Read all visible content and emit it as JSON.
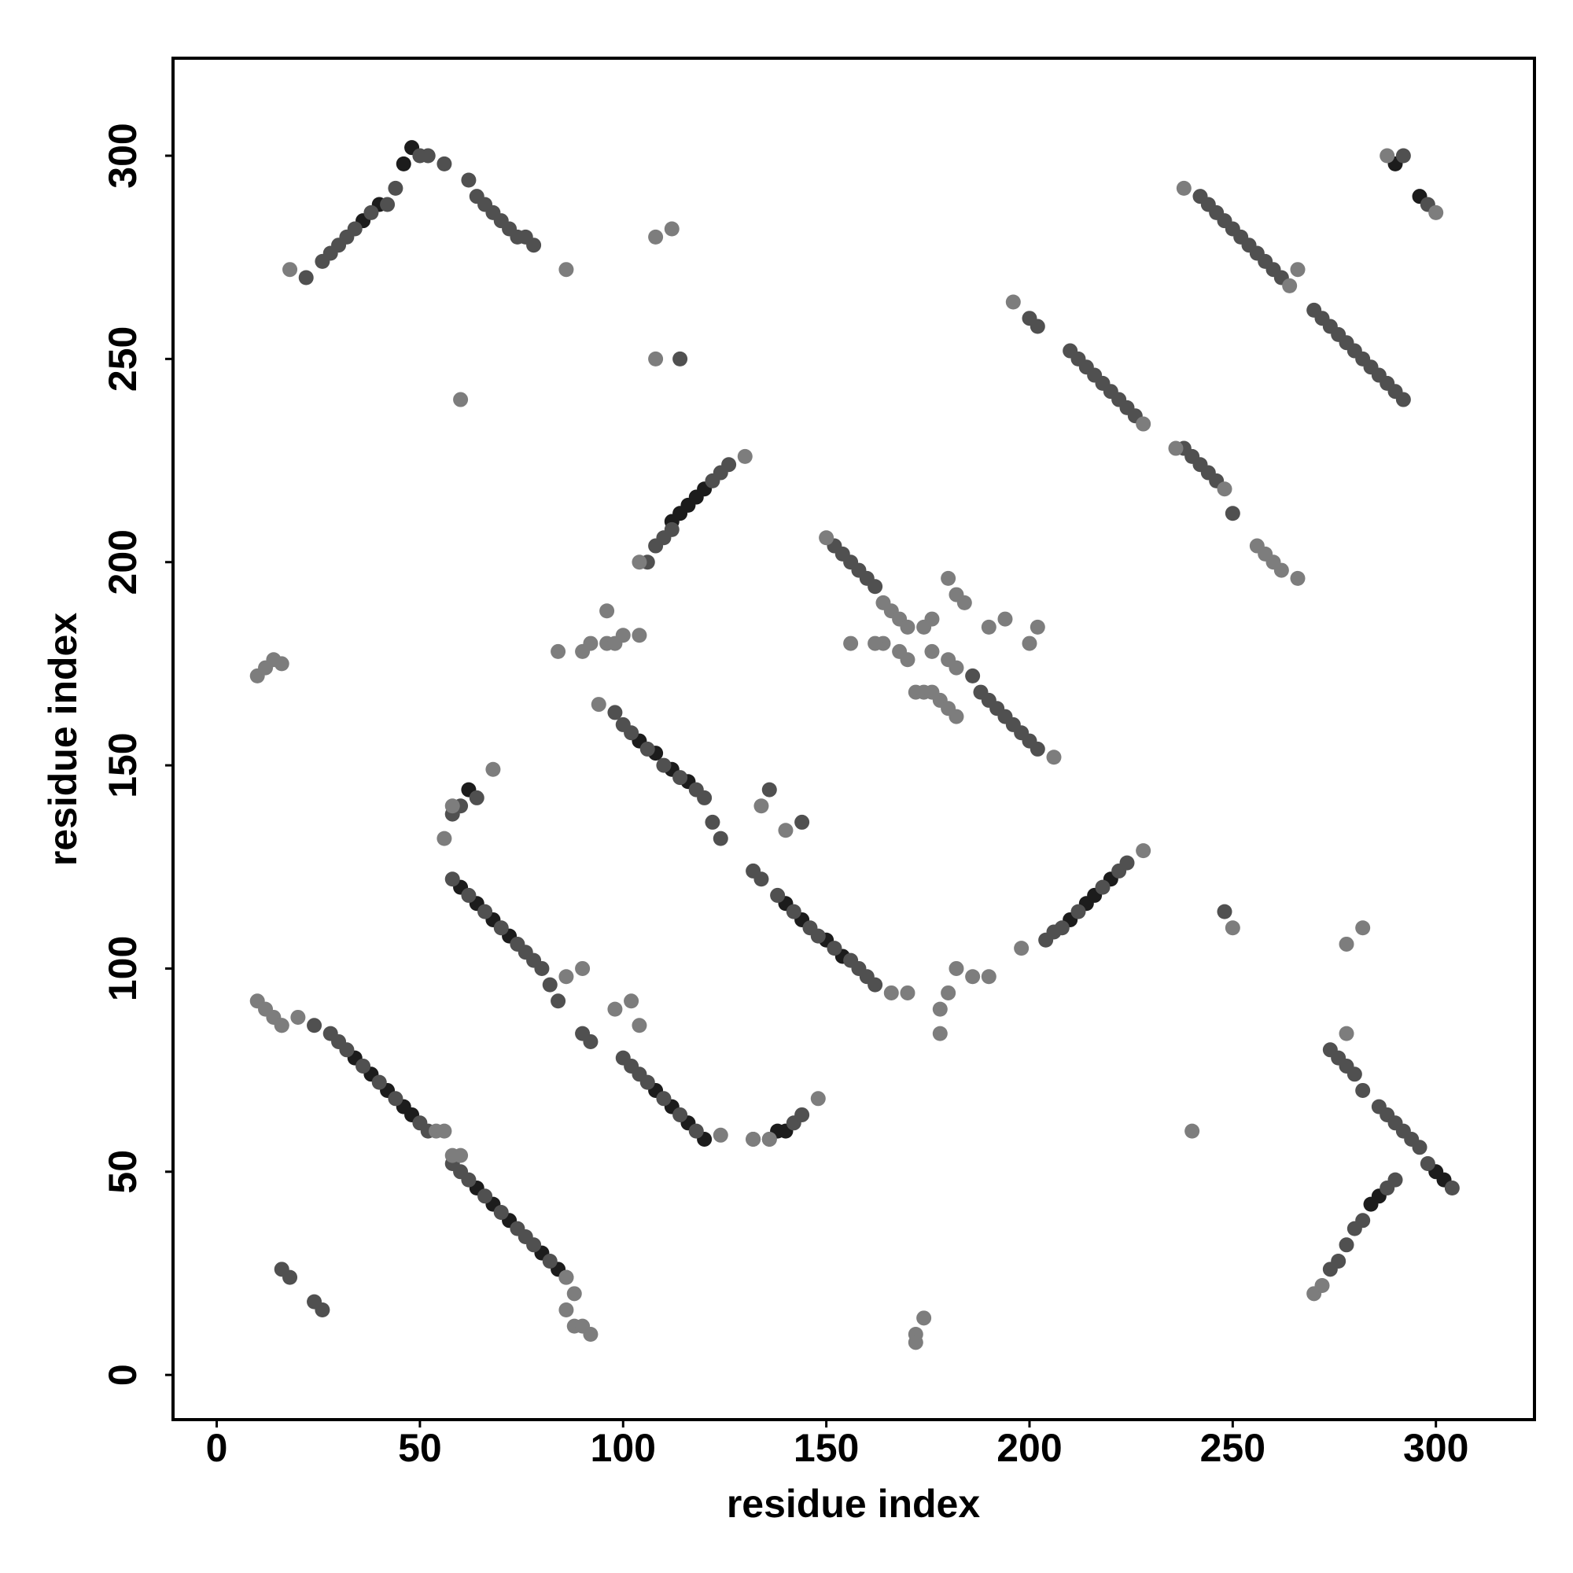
{
  "chart_data": {
    "type": "scatter",
    "x_label": "residue index",
    "y_label": "residue index",
    "xlim": [
      -10.75,
      324.25
    ],
    "ylim": [
      -11,
      324
    ],
    "xticks": [
      0,
      50,
      100,
      150,
      200,
      250,
      300
    ],
    "yticks": [
      0,
      50,
      100,
      150,
      200,
      250,
      300
    ],
    "grid": false,
    "series": [
      {
        "color": "#1c1c1c",
        "x": [
          34,
          38,
          42,
          46,
          48,
          64,
          68,
          72,
          80,
          84,
          60,
          64,
          68,
          72,
          108,
          112,
          116,
          120,
          138,
          140,
          104,
          108,
          112,
          116,
          140,
          144,
          150,
          154,
          62,
          112,
          114,
          116,
          118,
          120,
          210,
          214,
          216,
          220,
          46,
          48,
          36,
          40,
          290,
          296,
          300,
          302,
          284,
          286
        ],
        "values": [
          78,
          74,
          70,
          66,
          64,
          46,
          42,
          38,
          30,
          26,
          120,
          116,
          112,
          108,
          70,
          66,
          62,
          58,
          60,
          60,
          156,
          153,
          149,
          146,
          116,
          112,
          107,
          103,
          144,
          210,
          212,
          214,
          216,
          218,
          112,
          116,
          118,
          122,
          298,
          302,
          284,
          288,
          298,
          290,
          50,
          48,
          42,
          44
        ]
      },
      {
        "color": "#505050",
        "x": [
          24,
          28,
          30,
          32,
          36,
          40,
          44,
          50,
          52,
          58,
          60,
          62,
          66,
          70,
          74,
          76,
          78,
          82,
          86,
          58,
          62,
          66,
          70,
          74,
          76,
          78,
          80,
          82,
          84,
          90,
          92,
          100,
          102,
          104,
          106,
          110,
          114,
          118,
          132,
          136,
          142,
          144,
          98,
          100,
          102,
          106,
          110,
          114,
          118,
          120,
          122,
          124,
          132,
          134,
          138,
          142,
          146,
          148,
          152,
          156,
          158,
          160,
          162,
          58,
          60,
          64,
          106,
          108,
          110,
          122,
          124,
          126,
          204,
          206,
          208,
          212,
          218,
          222,
          224,
          22,
          26,
          28,
          30,
          32,
          34,
          38,
          42,
          44,
          50,
          52,
          56,
          62,
          64,
          66,
          68,
          70,
          72,
          74,
          76,
          78,
          200,
          202,
          210,
          212,
          214,
          216,
          218,
          220,
          222,
          224,
          226,
          238,
          240,
          242,
          244,
          246,
          250,
          242,
          244,
          246,
          248,
          250,
          252,
          254,
          256,
          258,
          260,
          262,
          270,
          272,
          274,
          276,
          278,
          280,
          282,
          284,
          286,
          288,
          290,
          292,
          292,
          298,
          152,
          154,
          156,
          158,
          160,
          162,
          186,
          188,
          190,
          192,
          194,
          196,
          198,
          200,
          202,
          274,
          276,
          278,
          280,
          282,
          288,
          290,
          274,
          276,
          278,
          280,
          282,
          286,
          288,
          290,
          292,
          294,
          296,
          298,
          304,
          16,
          18,
          24,
          26,
          248,
          114,
          112,
          136,
          144
        ],
        "values": [
          86,
          84,
          82,
          80,
          76,
          72,
          68,
          62,
          60,
          52,
          50,
          48,
          44,
          40,
          36,
          34,
          32,
          28,
          24,
          122,
          118,
          114,
          110,
          106,
          104,
          102,
          100,
          96,
          92,
          84,
          82,
          78,
          76,
          74,
          72,
          68,
          64,
          60,
          58,
          58,
          62,
          64,
          163,
          160,
          158,
          154,
          150,
          147,
          144,
          142,
          136,
          132,
          124,
          122,
          118,
          114,
          110,
          108,
          105,
          102,
          100,
          98,
          96,
          138,
          140,
          142,
          200,
          204,
          206,
          220,
          222,
          224,
          107,
          109,
          110,
          114,
          120,
          124,
          126,
          270,
          274,
          276,
          278,
          280,
          282,
          286,
          288,
          292,
          300,
          300,
          298,
          294,
          290,
          288,
          286,
          284,
          282,
          280,
          280,
          278,
          260,
          258,
          252,
          250,
          248,
          246,
          244,
          242,
          240,
          238,
          236,
          228,
          226,
          224,
          222,
          220,
          212,
          290,
          288,
          286,
          284,
          282,
          280,
          278,
          276,
          274,
          272,
          270,
          262,
          260,
          258,
          256,
          254,
          252,
          250,
          248,
          246,
          244,
          242,
          240,
          300,
          288,
          204,
          202,
          200,
          198,
          196,
          194,
          172,
          168,
          166,
          164,
          162,
          160,
          158,
          156,
          154,
          26,
          28,
          32,
          36,
          38,
          46,
          48,
          80,
          78,
          76,
          74,
          70,
          66,
          64,
          62,
          60,
          58,
          56,
          52,
          46,
          26,
          24,
          18,
          16,
          114,
          250,
          208,
          144,
          136
        ]
      },
      {
        "color": "#7d7d7d",
        "x": [
          20,
          54,
          56,
          86,
          88,
          86,
          88,
          92,
          90,
          60,
          58,
          124,
          132,
          136,
          148,
          94,
          166,
          170,
          134,
          140,
          56,
          58,
          68,
          104,
          130,
          198,
          228,
          18,
          86,
          196,
          228,
          236,
          248,
          256,
          258,
          260,
          262,
          266,
          238,
          264,
          266,
          288,
          150,
          164,
          166,
          168,
          170,
          176,
          180,
          182,
          164,
          168,
          170,
          172,
          174,
          176,
          178,
          180,
          182,
          180,
          182,
          184,
          190,
          194,
          200,
          202,
          176,
          174,
          162,
          156,
          206,
          270,
          272,
          278,
          300,
          10,
          12,
          14,
          16,
          10,
          12,
          14,
          16,
          16,
          108,
          112,
          108,
          60,
          84,
          90,
          92,
          96,
          98,
          100,
          104,
          96,
          174,
          172,
          178,
          178,
          180,
          182,
          186,
          190,
          240,
          250,
          278,
          282,
          86,
          90,
          98,
          102,
          104,
          172
        ],
        "values": [
          88,
          60,
          60,
          24,
          20,
          16,
          12,
          10,
          12,
          54,
          54,
          59,
          58,
          58,
          68,
          165,
          94,
          94,
          140,
          134,
          132,
          140,
          149,
          200,
          226,
          105,
          129,
          272,
          272,
          264,
          234,
          228,
          218,
          204,
          202,
          200,
          198,
          196,
          292,
          268,
          272,
          300,
          206,
          190,
          188,
          186,
          184,
          178,
          176,
          174,
          180,
          178,
          176,
          168,
          168,
          168,
          166,
          164,
          162,
          196,
          192,
          190,
          184,
          186,
          180,
          184,
          186,
          184,
          180,
          180,
          152,
          20,
          22,
          84,
          286,
          172,
          174,
          176,
          175,
          92,
          90,
          88,
          86,
          86,
          280,
          282,
          250,
          240,
          178,
          178,
          180,
          180,
          180,
          182,
          182,
          188,
          14,
          10,
          84,
          90,
          94,
          100,
          98,
          98,
          60,
          110,
          106,
          110,
          98,
          100,
          90,
          92,
          86,
          8
        ]
      }
    ]
  }
}
